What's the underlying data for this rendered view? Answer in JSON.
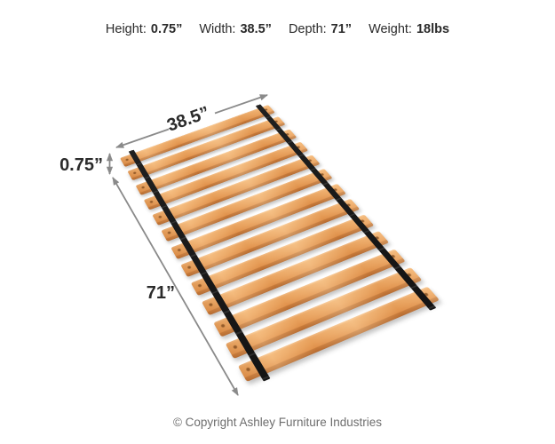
{
  "header": {
    "specs": [
      {
        "label": "Height:",
        "value": "0.75”"
      },
      {
        "label": "Width:",
        "value": "38.5”"
      },
      {
        "label": "Depth:",
        "value": "71”"
      },
      {
        "label": "Weight:",
        "value": "18lbs"
      }
    ]
  },
  "diagram": {
    "product": "wooden roll slats with straps",
    "slat_count": 13,
    "strap_count": 2,
    "width_label": "38.5”",
    "thickness_label": "0.75”",
    "depth_label": "71”",
    "colors": {
      "slat_top": "#eca35c",
      "slat_edge": "#c77b3a",
      "strap": "#141414",
      "arrow": "#8a8a8a",
      "text_dark": "#2b2b2b",
      "text_gray": "#6e6e6e"
    }
  },
  "footer": {
    "copyright": "© Copyright Ashley Furniture Industries"
  }
}
